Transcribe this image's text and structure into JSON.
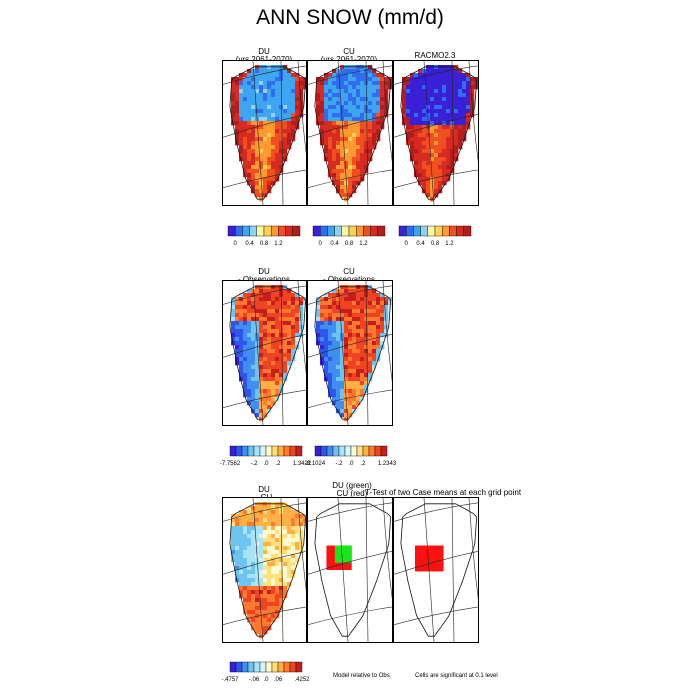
{
  "title": "ANN SNOW (mm/d)",
  "panels": [
    {
      "id": "du_future",
      "line1": "DU",
      "line2": "(yrs 2061-2070)",
      "scheme": "abs",
      "field": "du"
    },
    {
      "id": "cu_future",
      "line1": "CU",
      "line2": "(yrs 2061-2070)",
      "scheme": "abs",
      "field": "cu"
    },
    {
      "id": "racmo",
      "line1": "",
      "line2": "RACMO2.3",
      "scheme": "abs",
      "field": "racmo"
    },
    {
      "id": "du_obs",
      "line1": "DU",
      "line2": "- Observations",
      "scheme": "diff",
      "field": "du_obs"
    },
    {
      "id": "cu_obs",
      "line1": "CU",
      "line2": "- Observations",
      "scheme": "diff",
      "field": "cu_obs"
    },
    {
      "id": "du_cu",
      "line1": "DU",
      "line2": "- CU",
      "scheme": "diff",
      "field": "du_cu"
    },
    {
      "id": "ttest_du",
      "line1": "DU (green)",
      "line2": "CU (red)",
      "scheme": "sig",
      "field": "sig_du"
    },
    {
      "id": "ttest_cu",
      "line1": "",
      "line2": "",
      "scheme": "sig",
      "field": "sig_cu"
    }
  ],
  "ttest_title": "T-Test of two Case means at each grid point",
  "colorbars": [
    {
      "id": "cb-du",
      "ticks": [
        "0",
        "0.4",
        "0.8",
        "1.2"
      ],
      "scheme": "abs"
    },
    {
      "id": "cb-cu",
      "ticks": [
        "0",
        "0.4",
        "0.8",
        "1.2"
      ],
      "scheme": "abs"
    },
    {
      "id": "cb-racmo",
      "ticks": [
        "0",
        "0.4",
        "0.8",
        "1.2"
      ],
      "scheme": "abs"
    },
    {
      "id": "cb-du-obs",
      "ticks": [
        "-7.7562",
        "-.2",
        ".0",
        ".2",
        "1.3422"
      ],
      "scheme": "diff"
    },
    {
      "id": "cb-cu-obs",
      "ticks": [
        "-8.1024",
        "-.2",
        ".0",
        ".2",
        "1.2343"
      ],
      "scheme": "diff"
    },
    {
      "id": "cb-du-cu",
      "ticks": [
        "-.4757",
        "-.06",
        ".0",
        ".06",
        ".4252"
      ],
      "scheme": "diff"
    }
  ],
  "notes": {
    "model_relative": "Model relative to Obs",
    "cells_significant": "Cells are significant at 0.1 level"
  },
  "colors": {
    "abs": [
      "#3a1fd6",
      "#2f6cf0",
      "#3ea6f0",
      "#8fd3ee",
      "#fff8a0",
      "#ffd056",
      "#ff9a30",
      "#f05020",
      "#d62a22",
      "#b21e1e"
    ],
    "diff": [
      "#3a1fd6",
      "#2f55ee",
      "#3f8ff0",
      "#6ec4f0",
      "#a8e4f6",
      "#d8f4fa",
      "#fffbd0",
      "#ffe07a",
      "#ffb044",
      "#ff7a2e",
      "#ee4422",
      "#c41e1e"
    ],
    "sig_green": "#18e818",
    "sig_red": "#ff1010"
  }
}
